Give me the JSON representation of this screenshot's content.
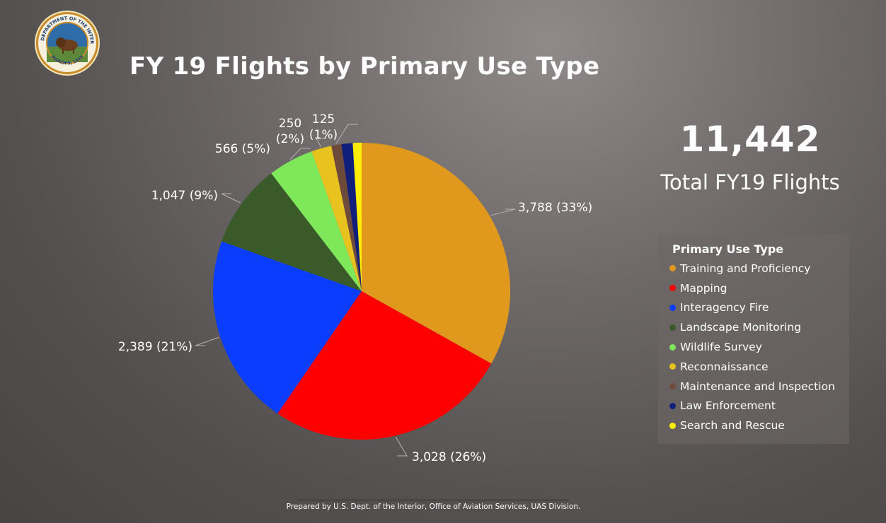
{
  "header": {
    "title": "FY 19 Flights by Primary Use Type",
    "seal_text": "U.S. DEPARTMENT OF THE INTERIOR",
    "seal_date": "MARCH 3, 1849"
  },
  "kpi": {
    "value": "11,442",
    "label": "Total FY19 Flights"
  },
  "chart_data": {
    "type": "pie",
    "legend_title": "Primary Use Type",
    "legend_position": "right",
    "slices": [
      {
        "label": "Training and Proficiency",
        "value": 3788,
        "display": "3,788 (33%)",
        "color": "#e0991c"
      },
      {
        "label": "Mapping",
        "value": 3028,
        "display": "3,028 (26%)",
        "color": "#ff0000"
      },
      {
        "label": "Interagency Fire",
        "value": 2389,
        "display": "2,389 (21%)",
        "color": "#0a3dff"
      },
      {
        "label": "Landscape Monitoring",
        "value": 1047,
        "display": "1,047 (9%)",
        "color": "#3b5a2a"
      },
      {
        "label": "Wildlife Survey",
        "value": 566,
        "display": "566 (5%)",
        "color": "#7ee85a"
      },
      {
        "label": "Reconnaissance",
        "value": 250,
        "display": "250 (2%)",
        "color": "#e8c21e"
      },
      {
        "label": "Maintenance and Inspection",
        "value": 125,
        "display": "125 (1%)",
        "color": "#6e4a3a"
      },
      {
        "label": "Law Enforcement",
        "value": 140,
        "display": "",
        "color": "#10207a"
      },
      {
        "label": "Search and Rescue",
        "value": 109,
        "display": "",
        "color": "#ffee00"
      }
    ]
  },
  "footer": {
    "text": "Prepared by U.S. Dept. of the Interior, Office of Aviation Services, UAS Division."
  }
}
